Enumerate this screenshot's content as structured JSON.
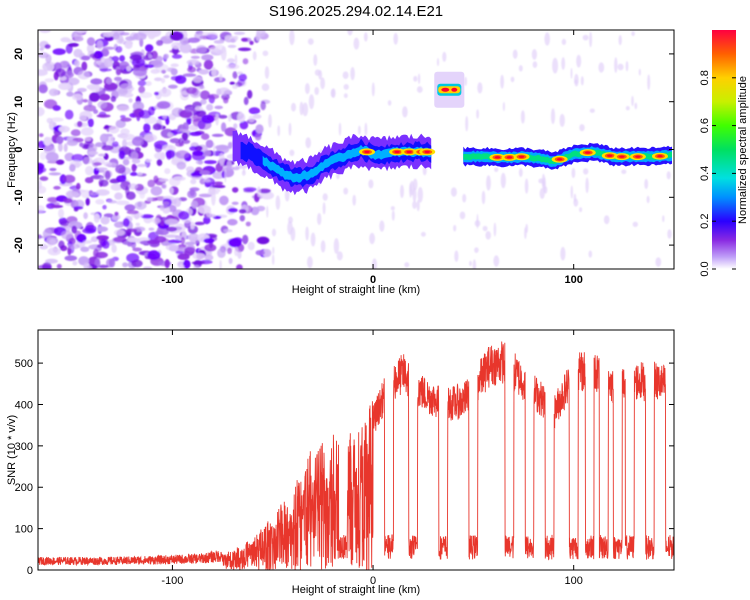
{
  "title": "S196.2025.294.02.14.E21",
  "chart_data": [
    {
      "type": "heatmap",
      "name": "spectrogram",
      "xlabel": "Height of straight line (km)",
      "ylabel": "Frequency (Hz)",
      "xlim": [
        -167,
        150
      ],
      "ylim": [
        -25,
        25
      ],
      "xticks": [
        -100,
        0,
        100
      ],
      "xtick_labels": [
        "-100",
        "0",
        "100"
      ],
      "yticks": [
        -20,
        -10,
        0,
        10,
        20
      ],
      "ytick_labels": [
        "-20",
        "-10",
        "0",
        "10",
        "20"
      ],
      "colorbar": {
        "label": "Normalized spectral amplitude",
        "range": [
          0,
          1
        ],
        "ticks": [
          0.0,
          0.2,
          0.4,
          0.6,
          0.8
        ],
        "tick_labels": [
          "0.0",
          "0.2",
          "0.4",
          "0.6",
          "0.8"
        ]
      },
      "ridge": {
        "x": [
          -70,
          -60,
          -52,
          -45,
          -38,
          -30,
          -24,
          -18,
          -12,
          -6,
          0,
          6,
          12,
          18,
          24,
          29
        ],
        "freq": [
          1,
          -1,
          -3,
          -5,
          -6,
          -5,
          -3,
          -2,
          -1,
          0,
          -1,
          -1,
          -0.5,
          -0.5,
          -0.5,
          -0.5
        ]
      },
      "isolated_segment": {
        "x": [
          32,
          44
        ],
        "freq": 12.5
      },
      "gap": [
        29,
        45
      ],
      "right_band": {
        "x": [
          45,
          55,
          65,
          75,
          85,
          90,
          100,
          110,
          120,
          130,
          140,
          149
        ],
        "freq": [
          -1.5,
          -1.5,
          -1.7,
          -1.5,
          -2,
          -2.5,
          -1,
          -0.5,
          -1.5,
          -1.5,
          -1.5,
          -1.2
        ]
      }
    },
    {
      "type": "line",
      "name": "snr",
      "xlabel": "Height of straight line (km)",
      "ylabel": "SNR (10 * v/v)",
      "xlim": [
        -167,
        150
      ],
      "ylim": [
        0,
        580
      ],
      "xticks": [
        -100,
        0,
        100
      ],
      "xtick_labels": [
        "-100",
        "0",
        "100"
      ],
      "yticks": [
        0,
        100,
        200,
        300,
        400,
        500
      ],
      "ytick_labels": [
        "0",
        "100",
        "200",
        "300",
        "400",
        "500"
      ],
      "color": "#e8362c",
      "envelope": {
        "x": [
          -167,
          -130,
          -100,
          -85,
          -75,
          -65,
          -58,
          -50,
          -42,
          -35,
          -28,
          -20,
          -12,
          -5,
          0,
          8,
          15,
          25,
          35,
          45,
          50,
          58,
          65,
          75,
          85,
          90,
          100,
          110,
          120,
          130,
          140,
          148,
          150
        ],
        "y": [
          22,
          22,
          25,
          28,
          35,
          55,
          80,
          120,
          170,
          230,
          290,
          310,
          330,
          340,
          380,
          470,
          500,
          450,
          420,
          430,
          460,
          520,
          530,
          480,
          430,
          400,
          500,
          510,
          470,
          480,
          480,
          470,
          410
        ]
      },
      "dips_x": [
        -15,
        8,
        20,
        35,
        50,
        68,
        78,
        88,
        100,
        108,
        115,
        122,
        128,
        138,
        148
      ]
    }
  ]
}
